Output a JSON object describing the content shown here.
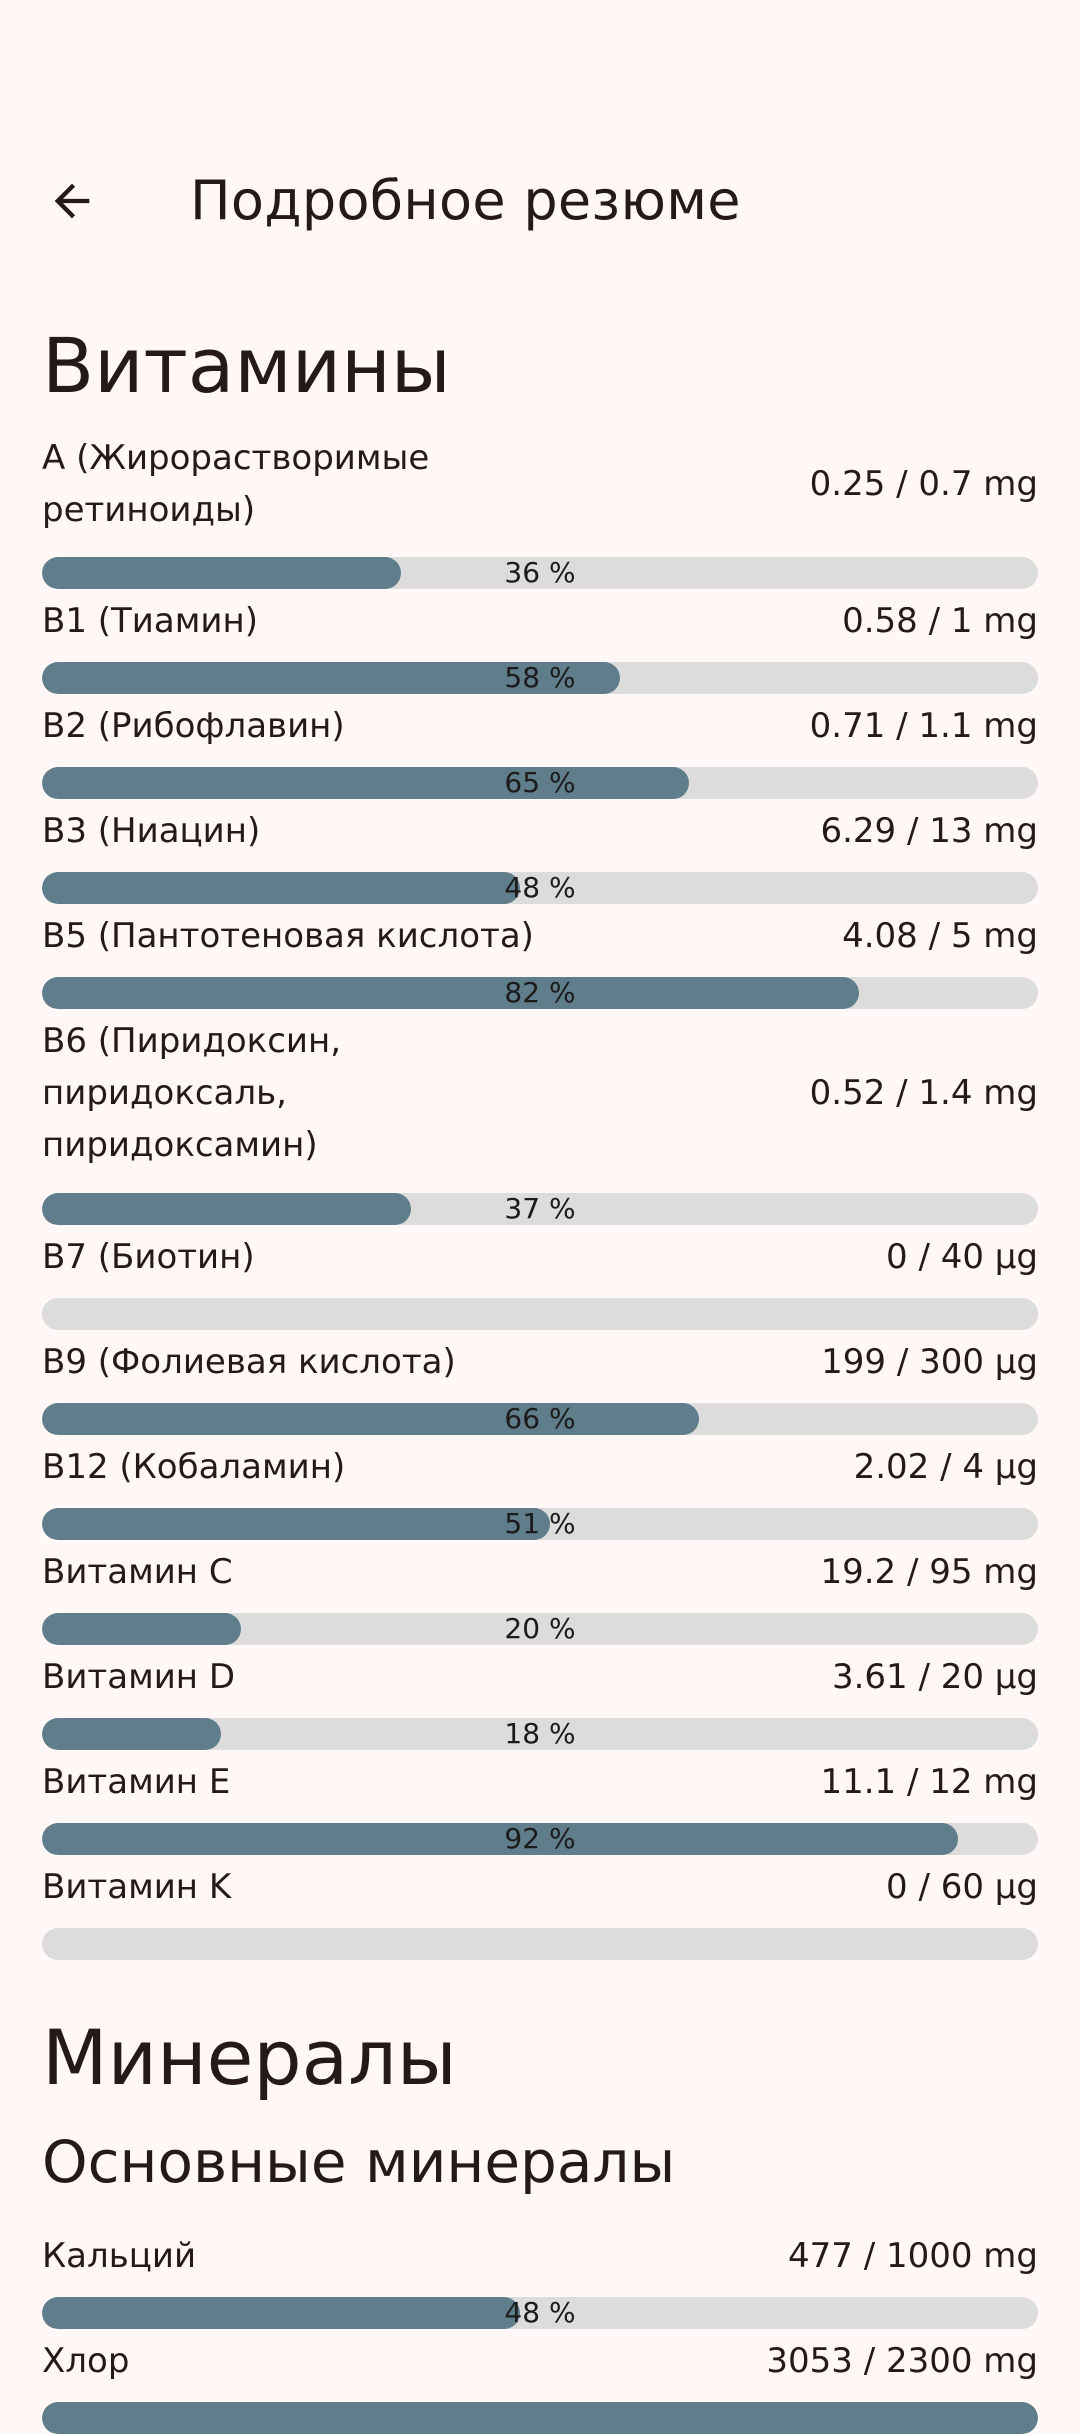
{
  "header": {
    "title": "Подробное резюме",
    "back_icon": "arrow-back-icon"
  },
  "sections": {
    "vitamins_title": "Витамины",
    "minerals_title": "Минералы",
    "main_minerals_title": "Основные минералы"
  },
  "colors": {
    "background": "#fff8f6",
    "bar_fill": "#607d8b",
    "bar_track": "#dcdcdc",
    "text": "#231a19"
  },
  "vitamins": [
    {
      "label": "A (Жирорастворимые ретиноиды)",
      "lines": [
        "A (Жирорастворимые",
        "ретиноиды)"
      ],
      "amount": "0.25 / 0.7 mg",
      "percent": 36,
      "percent_text": "36 %"
    },
    {
      "label": "B1 (Тиамин)",
      "lines": [
        "B1 (Тиамин)"
      ],
      "amount": "0.58 / 1 mg",
      "percent": 58,
      "percent_text": "58 %"
    },
    {
      "label": "B2 (Рибофлавин)",
      "lines": [
        "B2 (Рибофлавин)"
      ],
      "amount": "0.71 / 1.1 mg",
      "percent": 65,
      "percent_text": "65 %"
    },
    {
      "label": "B3 (Ниацин)",
      "lines": [
        "B3 (Ниацин)"
      ],
      "amount": "6.29 / 13 mg",
      "percent": 48,
      "percent_text": "48 %"
    },
    {
      "label": "B5 (Пантотеновая кислота)",
      "lines": [
        "B5 (Пантотеновая кислота)"
      ],
      "amount": "4.08 / 5 mg",
      "percent": 82,
      "percent_text": "82 %"
    },
    {
      "label": "B6 (Пиридоксин, пиридоксаль, пиридоксамин)",
      "lines": [
        "B6 (Пиридоксин,",
        "пиридоксаль,",
        "пиридоксамин)"
      ],
      "amount": "0.52 / 1.4 mg",
      "percent": 37,
      "percent_text": "37 %"
    },
    {
      "label": "B7 (Биотин)",
      "lines": [
        "B7 (Биотин)"
      ],
      "amount": "0 / 40 µg",
      "percent": 0,
      "percent_text": ""
    },
    {
      "label": "B9 (Фолиевая кислота)",
      "lines": [
        "B9 (Фолиевая кислота)"
      ],
      "amount": "199 / 300 µg",
      "percent": 66,
      "percent_text": "66 %"
    },
    {
      "label": "B12 (Кобаламин)",
      "lines": [
        "B12 (Кобаламин)"
      ],
      "amount": "2.02 / 4 µg",
      "percent": 51,
      "percent_text": "51 %"
    },
    {
      "label": "Витамин C",
      "lines": [
        "Витамин C"
      ],
      "amount": "19.2 / 95 mg",
      "percent": 20,
      "percent_text": "20 %"
    },
    {
      "label": "Витамин D",
      "lines": [
        "Витамин D"
      ],
      "amount": "3.61 / 20 µg",
      "percent": 18,
      "percent_text": "18 %"
    },
    {
      "label": "Витамин E",
      "lines": [
        "Витамин E"
      ],
      "amount": "11.1 / 12 mg",
      "percent": 92,
      "percent_text": "92 %"
    },
    {
      "label": "Витамин K",
      "lines": [
        "Витамин K"
      ],
      "amount": "0 / 60 µg",
      "percent": 0,
      "percent_text": ""
    }
  ],
  "main_minerals": [
    {
      "label": "Кальций",
      "lines": [
        "Кальций"
      ],
      "amount": "477 / 1000 mg",
      "percent": 48,
      "percent_text": "48 %"
    },
    {
      "label": "Хлор",
      "lines": [
        "Хлор"
      ],
      "amount": "3053 / 2300 mg",
      "percent": 100,
      "percent_text": ""
    }
  ]
}
